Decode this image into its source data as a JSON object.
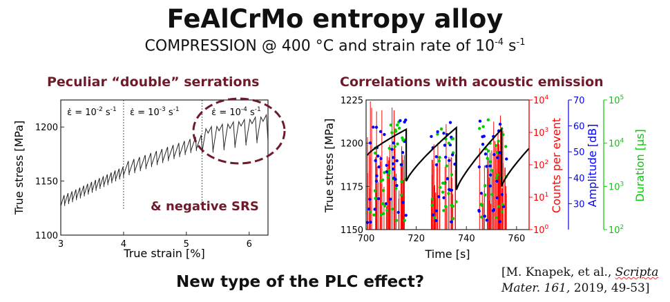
{
  "header": {
    "title": "FeAlCrMo entropy alloy",
    "subtitle_main": "COMPRESSION @ 400 °C and strain rate of 10",
    "subtitle_exp1": "-4",
    "subtitle_mid": " s",
    "subtitle_exp2": "-1"
  },
  "left_panel": {
    "heading": "Peculiar “double” serrations",
    "annotation": "& negative SRS"
  },
  "right_panel": {
    "heading": "Correlations with acoustic emission"
  },
  "footer": {
    "question": "New type of the PLC effect?",
    "citation_line1_a": "[M. Knapek, et al., ",
    "citation_line1_b": "Scripta",
    "citation_line2_a": "Mater. 161,",
    "citation_line2_b": " 2019, 49-53]"
  },
  "colors": {
    "heading": "#6e1a2a",
    "circle": "#6e1a2a",
    "counts": "#ff0000",
    "amplitude": "#0000ff",
    "duration": "#00cc00"
  },
  "chart_data": [
    {
      "type": "line",
      "xlabel": "True strain [%]",
      "ylabel": "True stress [MPa]",
      "xlim": [
        3,
        6.3
      ],
      "ylim": [
        1100,
        1225
      ],
      "x_ticks": [
        "3",
        "4",
        "5",
        "6"
      ],
      "y_ticks": [
        "1100",
        "1150",
        "1200"
      ],
      "strain_rate_labels": [
        {
          "eps": "ε̇ = 10",
          "exp": "-2",
          "unit": " s",
          "unit_exp": "-1"
        },
        {
          "eps": "ε̇ = 10",
          "exp": "-3",
          "unit": " s",
          "unit_exp": "-1"
        },
        {
          "eps": "ε̇ = 10",
          "exp": "-4",
          "unit": " s",
          "unit_exp": "-1"
        }
      ],
      "rate_change_strains": [
        4.0,
        5.25
      ],
      "segments": [
        {
          "x_start": 3.0,
          "x_end": 4.0,
          "y_start": 1132,
          "y_end": 1160,
          "amplitude": 10,
          "serrations": 16
        },
        {
          "x_start": 4.0,
          "x_end": 5.25,
          "y_start": 1162,
          "y_end": 1188,
          "amplitude": 13,
          "serrations": 14
        },
        {
          "x_start": 5.25,
          "x_end": 6.3,
          "y_start": 1192,
          "y_end": 1205,
          "amplitude": 24,
          "serrations": 6
        }
      ]
    },
    {
      "type": "scatter",
      "xlabel": "Time [s]",
      "ylabel": "True stress [MPa]",
      "xlim": [
        700,
        765
      ],
      "ylim": [
        1150,
        1225
      ],
      "x_ticks": [
        "700",
        "720",
        "740",
        "760"
      ],
      "y_ticks": [
        "1150",
        "1175",
        "1200",
        "1225"
      ],
      "axes_right": [
        {
          "label": "Counts per event",
          "color": "#ff0000",
          "scale": "log",
          "ticks": [
            {
              "m": "10",
              "e": "0"
            },
            {
              "m": "10",
              "e": "1"
            },
            {
              "m": "10",
              "e": "2"
            },
            {
              "m": "10",
              "e": "3"
            },
            {
              "m": "10",
              "e": "4"
            }
          ]
        },
        {
          "label": "Amplitude [dB]",
          "color": "#0000ff",
          "scale": "linear",
          "range": [
            20,
            70
          ],
          "ticks": [
            "30",
            "40",
            "50",
            "60",
            "70"
          ]
        },
        {
          "label": "Duration [µs]",
          "color": "#00cc00",
          "scale": "log",
          "ticks": [
            {
              "m": "10",
              "e": "2"
            },
            {
              "m": "10",
              "e": "3"
            },
            {
              "m": "10",
              "e": "4"
            },
            {
              "m": "10",
              "e": "5"
            }
          ]
        }
      ],
      "stress_cycles": [
        {
          "t_start": 700.5,
          "t_end": 716,
          "s_start": 1193,
          "s_end": 1208,
          "s_drop": 1178
        },
        {
          "t_start": 716,
          "t_end": 736,
          "s_start": 1178,
          "s_end": 1209
        },
        {
          "t_start": 736,
          "t_end": 754,
          "s_start": 1173,
          "s_end": 1208
        },
        {
          "t_start": 754,
          "t_end": 765,
          "s_start": 1175,
          "s_end": 1197
        }
      ],
      "ae_clusters": [
        [
          700.5,
          716
        ],
        [
          726,
          736
        ],
        [
          745,
          756
        ]
      ]
    }
  ]
}
